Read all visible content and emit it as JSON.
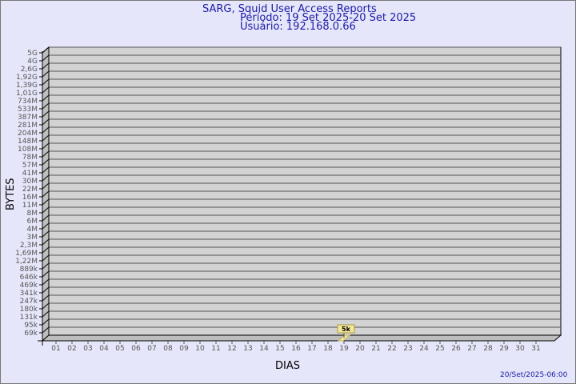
{
  "header": {
    "title": "SARG, Squid User Access Reports",
    "period": "Período: 19 Set 2025-20 Set 2025",
    "user": "Usuário: 192.168.0.66"
  },
  "footer": {
    "generated": "20/Set/2025-06:00"
  },
  "chart_data": {
    "type": "bar",
    "title": "SARG, Squid User Access Reports",
    "xlabel": "DIAS",
    "ylabel": "BYTES",
    "y_scale": "log",
    "y_ticks": [
      "5G",
      "4G",
      "2,6G",
      "1,92G",
      "1,39G",
      "1,01G",
      "734M",
      "533M",
      "387M",
      "281M",
      "204M",
      "148M",
      "108M",
      "78M",
      "57M",
      "41M",
      "30M",
      "22M",
      "16M",
      "11M",
      "8M",
      "6M",
      "4M",
      "3M",
      "2,3M",
      "1,69M",
      "1,22M",
      "889k",
      "646k",
      "469k",
      "341k",
      "247k",
      "180k",
      "131k",
      "95k",
      "69k"
    ],
    "categories": [
      "01",
      "02",
      "03",
      "04",
      "05",
      "06",
      "07",
      "08",
      "09",
      "10",
      "11",
      "12",
      "13",
      "14",
      "15",
      "16",
      "17",
      "18",
      "19",
      "20",
      "21",
      "22",
      "23",
      "24",
      "25",
      "26",
      "27",
      "28",
      "29",
      "30",
      "31"
    ],
    "values": [
      {
        "day": "19",
        "label": "5k",
        "bytes": 5000
      }
    ],
    "grid": true,
    "colors": {
      "background": "#e6e6fa",
      "plot": "#d3d3d3",
      "bar": "#f5e79a",
      "title": "#1a1aa6"
    }
  }
}
